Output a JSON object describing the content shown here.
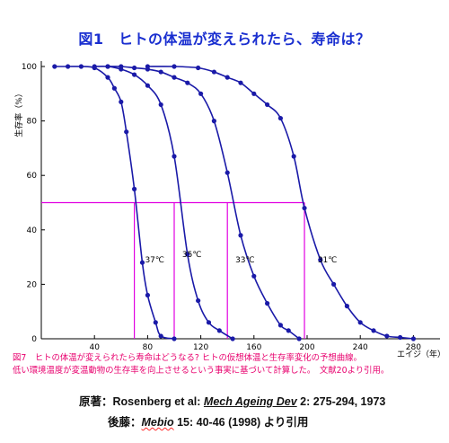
{
  "title": "図1　ヒトの体温が変えられたら、寿命は？",
  "chart_data": {
    "type": "line",
    "ylabel": "生存率（%）",
    "xlabel": "エイジ（年）",
    "xlim": [
      0,
      300
    ],
    "ylim": [
      0,
      100
    ],
    "x_ticks": [
      0,
      40,
      80,
      120,
      160,
      200,
      240,
      280
    ],
    "y_ticks": [
      0,
      20,
      40,
      60,
      80,
      100
    ],
    "grid": false,
    "axis_color": "#000000",
    "series_color": "#1a1aa8",
    "guide_color": "#e100e1",
    "guide_level": 50,
    "guide_x": [
      70,
      100,
      140,
      198
    ],
    "series": [
      {
        "label": "37℃",
        "label_pos": [
          78,
          28
        ],
        "points": [
          [
            10,
            100
          ],
          [
            20,
            100
          ],
          [
            30,
            100
          ],
          [
            40,
            99.5
          ],
          [
            50,
            96
          ],
          [
            55,
            92
          ],
          [
            60,
            87
          ],
          [
            64,
            76
          ],
          [
            70,
            55
          ],
          [
            76,
            28
          ],
          [
            80,
            16
          ],
          [
            86,
            6
          ],
          [
            90,
            1
          ],
          [
            100,
            0
          ]
        ]
      },
      {
        "label": "35℃",
        "label_pos": [
          106,
          30
        ],
        "points": [
          [
            40,
            100
          ],
          [
            50,
            100
          ],
          [
            60,
            99
          ],
          [
            70,
            97
          ],
          [
            80,
            93
          ],
          [
            90,
            86
          ],
          [
            100,
            67
          ],
          [
            110,
            31
          ],
          [
            118,
            14
          ],
          [
            126,
            6
          ],
          [
            134,
            3
          ],
          [
            144,
            0
          ]
        ]
      },
      {
        "label": "33℃",
        "label_pos": [
          146,
          28
        ],
        "points": [
          [
            50,
            100
          ],
          [
            60,
            100
          ],
          [
            70,
            99.5
          ],
          [
            80,
            99
          ],
          [
            90,
            98
          ],
          [
            100,
            96
          ],
          [
            110,
            94
          ],
          [
            120,
            90
          ],
          [
            130,
            80
          ],
          [
            140,
            61
          ],
          [
            150,
            38
          ],
          [
            160,
            23
          ],
          [
            170,
            13
          ],
          [
            180,
            5
          ],
          [
            186,
            3
          ],
          [
            194,
            0
          ]
        ]
      },
      {
        "label": "31℃",
        "label_pos": [
          208,
          28
        ],
        "points": [
          [
            80,
            100
          ],
          [
            100,
            100
          ],
          [
            118,
            99.5
          ],
          [
            130,
            98
          ],
          [
            140,
            96
          ],
          [
            150,
            94
          ],
          [
            160,
            90
          ],
          [
            170,
            86
          ],
          [
            180,
            81
          ],
          [
            190,
            67
          ],
          [
            198,
            48
          ],
          [
            210,
            29
          ],
          [
            220,
            20
          ],
          [
            230,
            12
          ],
          [
            240,
            6
          ],
          [
            250,
            3
          ],
          [
            260,
            1
          ],
          [
            270,
            0.5
          ],
          [
            280,
            0
          ]
        ]
      }
    ]
  },
  "caption": {
    "line1": "図7　ヒトの体温が変えられたら寿命はどうなる? ヒトの仮想体温と生存率変化の予想曲線。",
    "line2": "低い環境温度が変温動物の生存率を向上させるという事実に基づいて計算した。　文献20より引用。"
  },
  "reference1": {
    "prefix": "原著：Rosenberg et al: ",
    "journal": "Mech Ageing Dev",
    "details": " 2: 275-294, 1973"
  },
  "reference2": {
    "prefix": "後藤：",
    "journal": "Mebio",
    "details": " 15: 40-46 (1998) より引用"
  }
}
